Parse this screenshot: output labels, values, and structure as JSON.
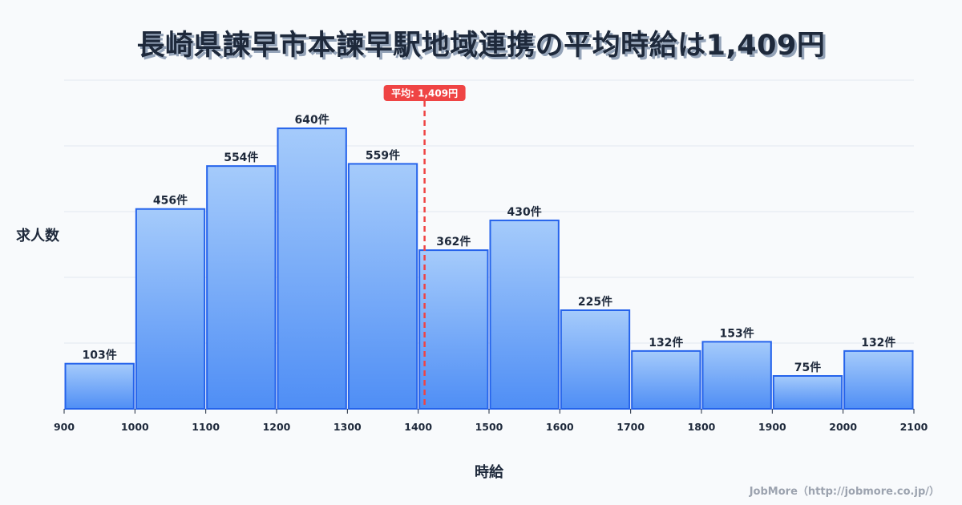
{
  "title": "長崎県諫早市本諫早駅地域連携の平均時給は1,409円",
  "y_axis_label": "求人数",
  "x_axis_label": "時給",
  "credit": "JobMore（http://jobmore.co.jp/）",
  "mean_badge": "平均: 1,409円",
  "colors": {
    "bar_fill_top": "#a5cbfb",
    "bar_fill_bottom": "#4f8ef5",
    "bar_stroke": "#2563eb",
    "mean_line": "#ef4444",
    "grid": "#e2e8f0",
    "text": "#1e293b"
  },
  "chart_data": {
    "type": "bar",
    "title": "長崎県諫早市本諫早駅地域連携の平均時給は1,409円",
    "xlabel": "時給",
    "ylabel": "求人数",
    "bin_edges": [
      900,
      1000,
      1100,
      1200,
      1300,
      1400,
      1500,
      1600,
      1700,
      1800,
      1900,
      2000,
      2100
    ],
    "categories": [
      "900-1000",
      "1000-1100",
      "1100-1200",
      "1200-1300",
      "1300-1400",
      "1400-1500",
      "1500-1600",
      "1600-1700",
      "1700-1800",
      "1800-1900",
      "1900-2000",
      "2000-2100"
    ],
    "values": [
      103,
      456,
      554,
      640,
      559,
      362,
      430,
      225,
      132,
      153,
      75,
      132
    ],
    "value_labels": [
      "103件",
      "456件",
      "554件",
      "640件",
      "559件",
      "362件",
      "430件",
      "225件",
      "132件",
      "153件",
      "75件",
      "132件"
    ],
    "x_ticks": [
      "900",
      "1000",
      "1100",
      "1200",
      "1300",
      "1400",
      "1500",
      "1600",
      "1700",
      "1800",
      "1900",
      "2000",
      "2100"
    ],
    "xlim": [
      900,
      2100
    ],
    "ylim": [
      0,
      750
    ],
    "grid": true,
    "y_tick_labels_visible": false,
    "annotations": [
      {
        "type": "vline",
        "x": 1409,
        "label": "平均: 1,409円",
        "style": "dashed",
        "color": "#ef4444"
      }
    ],
    "legend": null
  }
}
